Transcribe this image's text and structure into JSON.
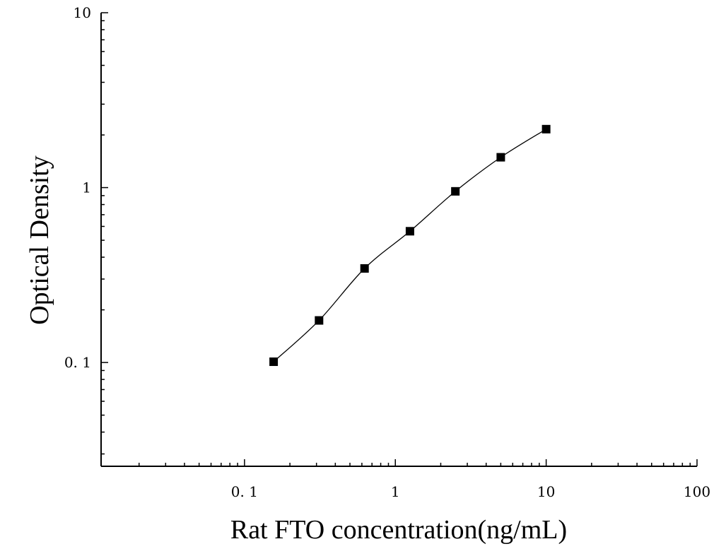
{
  "chart_data": {
    "type": "scatter",
    "xlabel": "Rat FTO concentration(ng/mL)",
    "ylabel": "Optical Density",
    "x_scale": "log",
    "y_scale": "log",
    "xlim": [
      0.0112,
      100
    ],
    "ylim": [
      0.0255,
      10
    ],
    "x_ticks": [
      0.1,
      1,
      10,
      100
    ],
    "x_tick_labels": [
      "0. 1",
      "1",
      "10",
      "100"
    ],
    "y_ticks": [
      0.1,
      1,
      10
    ],
    "y_tick_labels": [
      "0. 1",
      "1",
      "10"
    ],
    "grid": false,
    "series": [
      {
        "marker": "square",
        "color": "#000000",
        "fit_line": true,
        "x": [
          0.156,
          0.312,
          0.625,
          1.25,
          2.5,
          5,
          10
        ],
        "y": [
          0.101,
          0.174,
          0.345,
          0.563,
          0.952,
          1.491,
          2.159
        ]
      }
    ]
  }
}
